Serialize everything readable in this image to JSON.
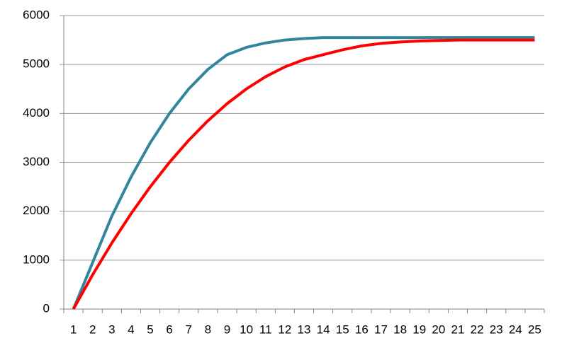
{
  "chart_data": {
    "type": "line",
    "categories": [
      "1",
      "2",
      "3",
      "4",
      "5",
      "6",
      "7",
      "8",
      "9",
      "10",
      "11",
      "12",
      "13",
      "14",
      "15",
      "16",
      "17",
      "18",
      "19",
      "20",
      "21",
      "22",
      "23",
      "24",
      "25"
    ],
    "series": [
      {
        "color": "#31859c",
        "values": [
          0,
          950,
          1900,
          2700,
          3400,
          4000,
          4500,
          4900,
          5200,
          5350,
          5440,
          5500,
          5530,
          5550,
          5550,
          5550,
          5550,
          5550,
          5550,
          5550,
          5550,
          5550,
          5550,
          5550,
          5550
        ]
      },
      {
        "color": "#ff0000",
        "values": [
          0,
          700,
          1350,
          1950,
          2500,
          3000,
          3450,
          3850,
          4200,
          4500,
          4750,
          4950,
          5100,
          5200,
          5300,
          5380,
          5430,
          5460,
          5480,
          5490,
          5500,
          5500,
          5500,
          5500,
          5500
        ]
      }
    ],
    "ylim": [
      0,
      6000
    ],
    "yticks": [
      0,
      1000,
      2000,
      3000,
      4000,
      5000,
      6000
    ],
    "grid": true
  }
}
